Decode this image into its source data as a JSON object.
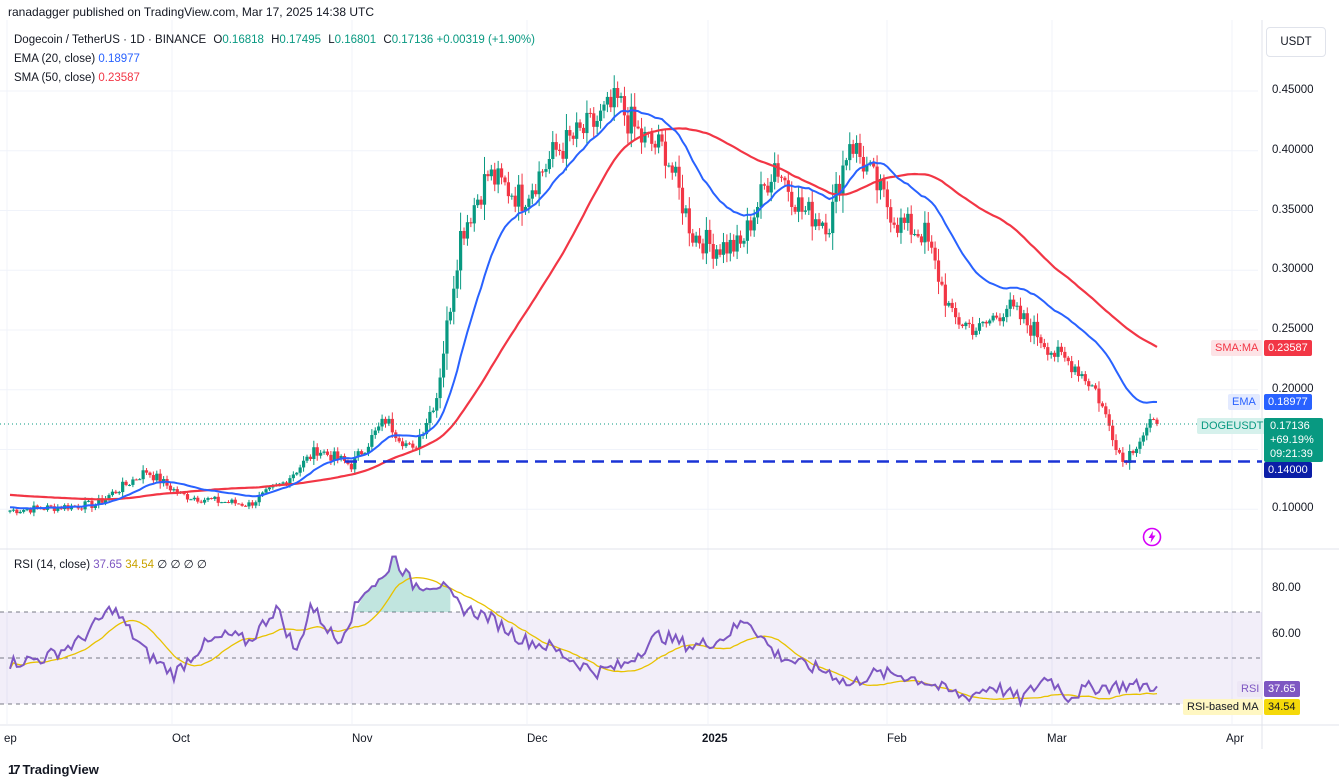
{
  "publisher": "ranadagger published on TradingView.com, Mar 17, 2025 14:38 UTC",
  "legend": {
    "symbol": "Dogecoin / TetherUS · 1D · BINANCE",
    "o_label": "O",
    "o": "0.16818",
    "h_label": "H",
    "h": "0.17495",
    "l_label": "L",
    "l": "0.16801",
    "c_label": "C",
    "c": "0.17136",
    "change": "+0.00319 (+1.90%)",
    "ema_label": "EMA (20, close)",
    "ema": "0.18977",
    "sma_label": "SMA (50, close)",
    "sma": "0.23587"
  },
  "rsi_legend": {
    "label": "RSI (14, close)",
    "rsi": "37.65",
    "rsi_ma": "34.54",
    "extra": "∅ ∅ ∅ ∅"
  },
  "currency": "USDT",
  "price_axis": [
    "0.45000",
    "0.40000",
    "0.35000",
    "0.30000",
    "0.25000",
    "0.20000",
    "0.10000"
  ],
  "rsi_axis": [
    "80.00",
    "60.00"
  ],
  "x_axis": [
    "ep",
    "Oct",
    "Nov",
    "Dec",
    "2025",
    "Feb",
    "Mar",
    "Apr"
  ],
  "tags": {
    "sma_label": "SMA:MA",
    "sma_value": "0.23587",
    "ema_label": "EMA",
    "ema_value": "0.18977",
    "symbol_label": "DOGEUSDT",
    "price": "0.17136",
    "pct": "+69.19%",
    "countdown": "09:21:39",
    "support": "0.14000",
    "rsi_label": "RSI",
    "rsi_value": "37.65",
    "rsima_label": "RSI-based MA",
    "rsima_value": "34.54"
  },
  "footer": "TradingView",
  "colors": {
    "up": "#089981",
    "down": "#f23645",
    "ema": "#2962ff",
    "sma": "#f23645",
    "rsi": "#7e57c2",
    "rsima": "#e8c200",
    "support": "#1a33d6"
  },
  "chart_data": {
    "type": "candlestick",
    "title": "Dogecoin / TetherUS · 1D · BINANCE",
    "ylim": [
      0.06,
      0.49
    ],
    "support_level": 0.14,
    "anchors": {
      "close": [
        [
          0,
          0.099
        ],
        [
          25,
          0.104
        ],
        [
          40,
          0.132
        ],
        [
          50,
          0.112
        ],
        [
          60,
          0.107
        ],
        [
          70,
          0.104
        ],
        [
          80,
          0.122
        ],
        [
          90,
          0.15
        ],
        [
          100,
          0.137
        ],
        [
          110,
          0.175
        ],
        [
          118,
          0.148
        ],
        [
          125,
          0.195
        ],
        [
          132,
          0.33
        ],
        [
          140,
          0.38
        ],
        [
          150,
          0.36
        ],
        [
          160,
          0.4
        ],
        [
          170,
          0.42
        ],
        [
          178,
          0.44
        ],
        [
          185,
          0.41
        ],
        [
          192,
          0.4
        ],
        [
          200,
          0.33
        ],
        [
          206,
          0.32
        ],
        [
          214,
          0.32
        ],
        [
          224,
          0.39
        ],
        [
          232,
          0.35
        ],
        [
          240,
          0.34
        ],
        [
          246,
          0.41
        ],
        [
          252,
          0.38
        ],
        [
          260,
          0.34
        ],
        [
          268,
          0.33
        ],
        [
          276,
          0.26
        ],
        [
          284,
          0.25
        ],
        [
          292,
          0.27
        ],
        [
          300,
          0.25
        ],
        [
          306,
          0.23
        ],
        [
          312,
          0.22
        ],
        [
          318,
          0.2
        ],
        [
          326,
          0.14
        ],
        [
          334,
          0.17
        ],
        [
          336,
          0.171
        ]
      ],
      "ema20_start": 0.102,
      "ema20_end": 0.18977,
      "sma50_start": 0.112,
      "sma50_end": 0.23587
    },
    "rsi": {
      "ylim": [
        20,
        100
      ],
      "upper_band": 70,
      "lower_band": 30,
      "series": [
        [
          0,
          48
        ],
        [
          10,
          50
        ],
        [
          20,
          57
        ],
        [
          30,
          72
        ],
        [
          40,
          52
        ],
        [
          48,
          43
        ],
        [
          56,
          55
        ],
        [
          64,
          60
        ],
        [
          70,
          57
        ],
        [
          78,
          72
        ],
        [
          84,
          52
        ],
        [
          88,
          73
        ],
        [
          96,
          57
        ],
        [
          104,
          80
        ],
        [
          110,
          85
        ],
        [
          112,
          95
        ],
        [
          118,
          82
        ],
        [
          126,
          82
        ],
        [
          132,
          72
        ],
        [
          140,
          68
        ],
        [
          150,
          58
        ],
        [
          158,
          55
        ],
        [
          166,
          48
        ],
        [
          172,
          44
        ],
        [
          180,
          47
        ],
        [
          190,
          60
        ],
        [
          200,
          55
        ],
        [
          208,
          58
        ],
        [
          216,
          67
        ],
        [
          224,
          52
        ],
        [
          232,
          47
        ],
        [
          240,
          44
        ],
        [
          246,
          38
        ],
        [
          252,
          43
        ],
        [
          260,
          43
        ],
        [
          268,
          40
        ],
        [
          274,
          36
        ],
        [
          280,
          33
        ],
        [
          288,
          38
        ],
        [
          296,
          32
        ],
        [
          304,
          42
        ],
        [
          310,
          33
        ],
        [
          316,
          37
        ],
        [
          326,
          38
        ]
      ],
      "last": 37.65,
      "ma_last": 34.54
    }
  }
}
